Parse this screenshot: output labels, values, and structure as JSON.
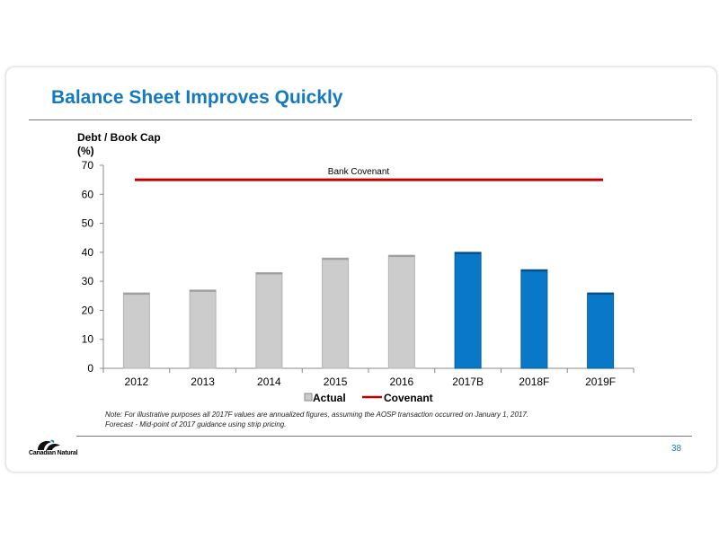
{
  "slide": {
    "title": "Balance Sheet Improves Quickly",
    "note_line1": "Note: For illustrative purposes all 2017F values are annualized figures, assuming the AOSP transaction occurred on January 1, 2017.",
    "note_line2": "Forecast - Mid-point of 2017 guidance using strip pricing.",
    "page_number": "38",
    "logo_text": "Canadian Natural"
  },
  "colors": {
    "title": "#1479be",
    "actual_bar": "#cccccc",
    "forecast_bar": "#0a78c8",
    "covenant": "#c00000"
  },
  "chart_data": {
    "type": "bar",
    "ylabel_line1": "Debt / Book Cap",
    "ylabel_line2": "(%)",
    "ylim": [
      0,
      70
    ],
    "yticks": [
      0,
      10,
      20,
      30,
      40,
      50,
      60,
      70
    ],
    "categories": [
      "2012",
      "2013",
      "2014",
      "2015",
      "2016",
      "2017B",
      "2018F",
      "2019F"
    ],
    "values": [
      26,
      27,
      33,
      38,
      39,
      40,
      34,
      26
    ],
    "bar_types": [
      "actual",
      "actual",
      "actual",
      "actual",
      "actual",
      "forecast",
      "forecast",
      "forecast"
    ],
    "covenant": {
      "value": 65,
      "annotation": "Bank Covenant"
    },
    "legend": [
      {
        "label": "Actual",
        "kind": "box"
      },
      {
        "label": "Covenant",
        "kind": "line"
      }
    ],
    "grid": false,
    "legend_position": "bottom"
  }
}
